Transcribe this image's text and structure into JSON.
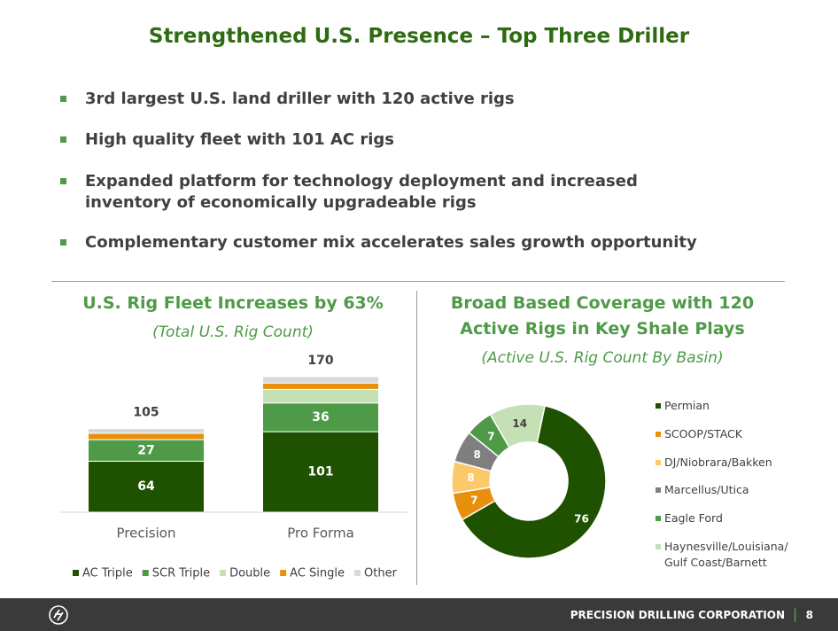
{
  "title": "Strengthened U.S. Presence – Top Three Driller",
  "bullets": [
    "3rd largest U.S. land driller with 120 active rigs",
    "High quality fleet with 101 AC rigs",
    "Expanded platform for technology deployment and increased inventory of economically upgradeable rigs",
    "Complementary customer mix accelerates sales growth opportunity"
  ],
  "chart_data": [
    {
      "type": "bar",
      "stacked": true,
      "title": "U.S. Rig Fleet Increases by 63%",
      "subtitle": "(Total U.S. Rig Count)",
      "categories": [
        "Precision",
        "Pro Forma"
      ],
      "series": [
        {
          "name": "AC Triple",
          "color": "#1f5200",
          "values": [
            64,
            101
          ]
        },
        {
          "name": "SCR Triple",
          "color": "#4e9a47",
          "values": [
            27,
            36
          ]
        },
        {
          "name": "Double",
          "color": "#c5e0b4",
          "values": [
            0,
            17
          ]
        },
        {
          "name": "AC Single",
          "color": "#e8900c",
          "values": [
            8,
            8
          ]
        },
        {
          "name": "Other",
          "color": "#d9d9d9",
          "values": [
            6,
            8
          ]
        }
      ],
      "totals": [
        105,
        170
      ],
      "legend": "bottom"
    },
    {
      "type": "donut",
      "title": "Broad Based Coverage with 120 Active Rigs in Key Shale Plays",
      "subtitle": "(Active U.S. Rig Count By Basin)",
      "categories": [
        "Permian",
        "SCOOP/STACK",
        "DJ/Niobrara/Bakken",
        "Marcellus/Utica",
        "Eagle Ford",
        "Haynesville/Louisiana/ Gulf Coast/Barnett"
      ],
      "values": [
        76,
        7,
        8,
        8,
        7,
        14
      ],
      "colors": [
        "#1f5200",
        "#e8900c",
        "#fbc86a",
        "#7f7f7f",
        "#4e9a47",
        "#c5e0b4"
      ],
      "legend": "right"
    }
  ],
  "footer": {
    "company": "PRECISION DRILLING CORPORATION",
    "page": "8"
  }
}
